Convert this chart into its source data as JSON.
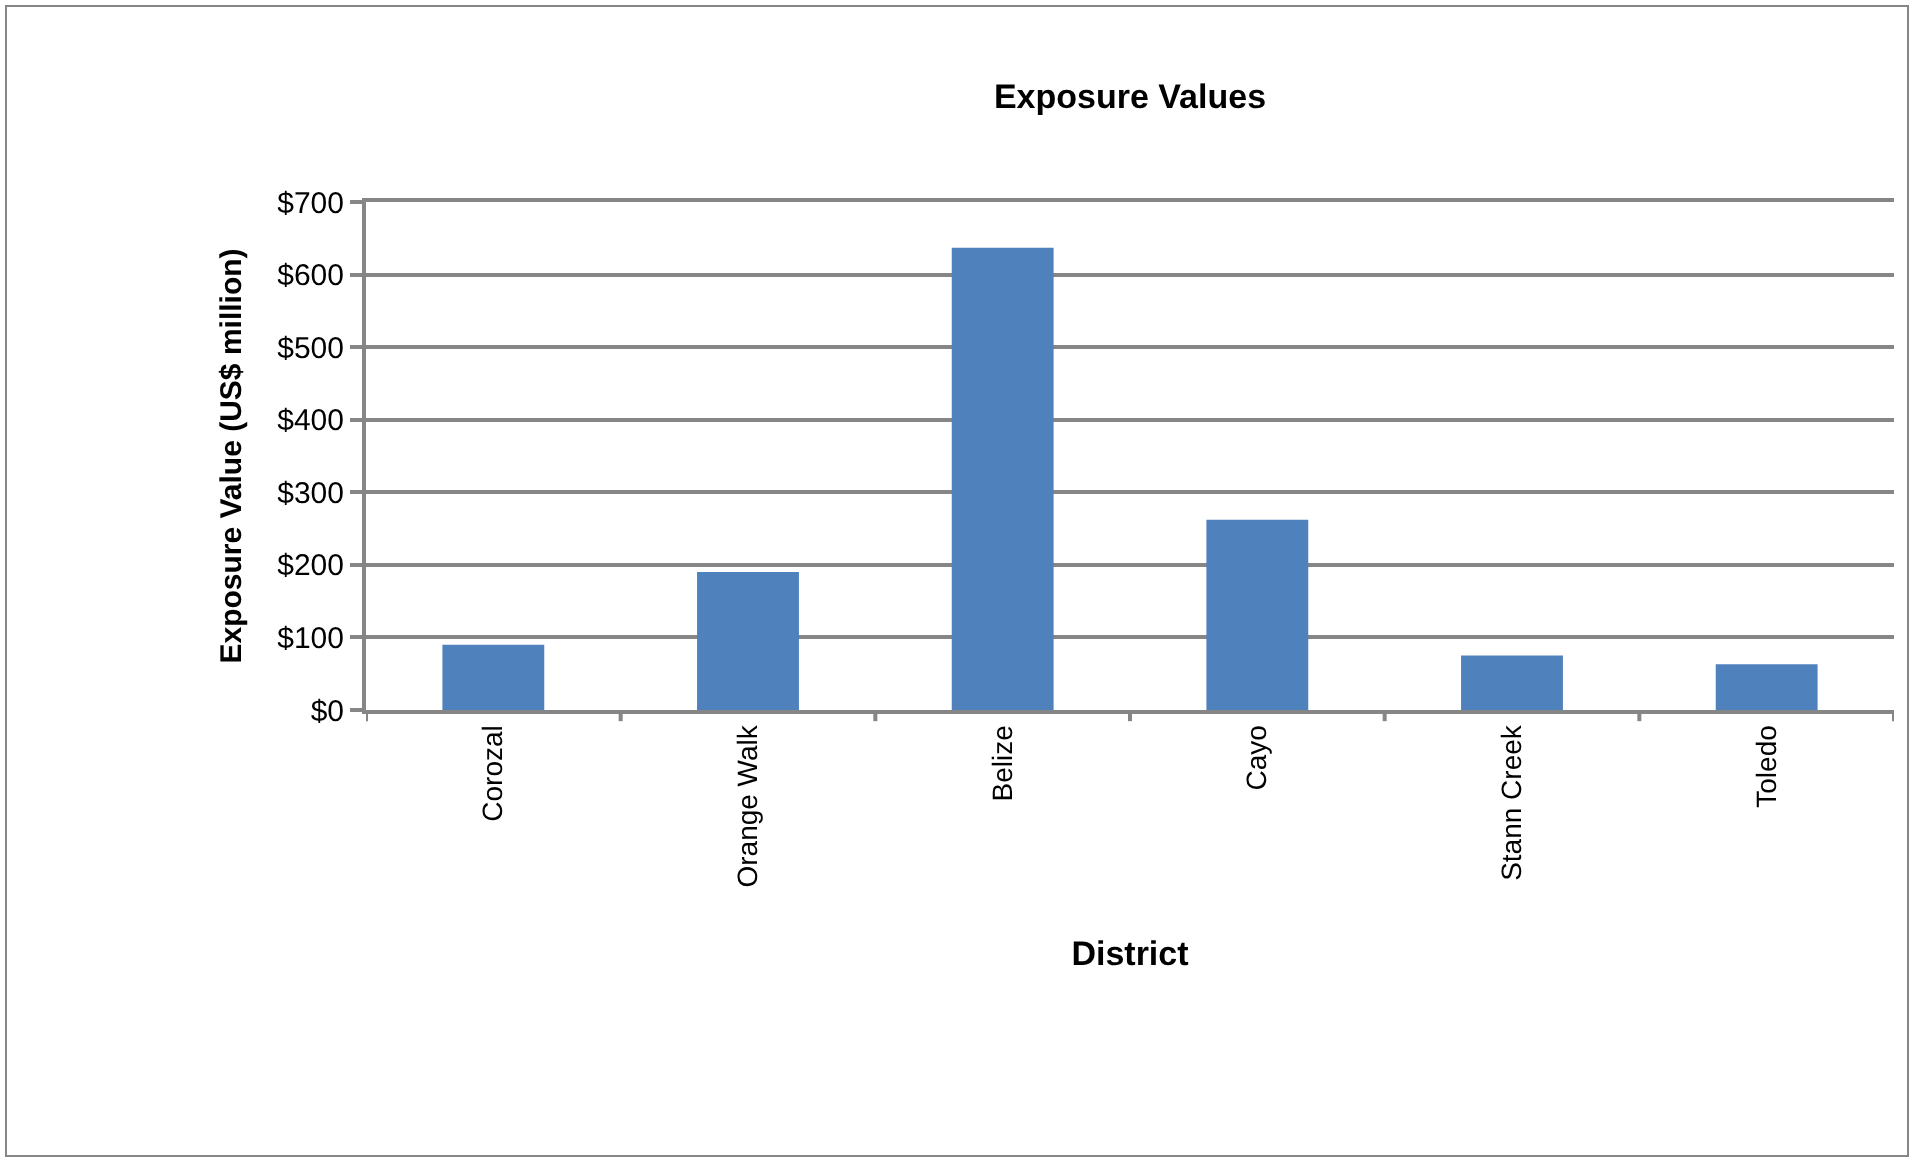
{
  "chart_data": {
    "type": "bar",
    "title": "Exposure Values",
    "xlabel": "District",
    "ylabel": "Exposure Value (US$ million)",
    "categories": [
      "Corozal",
      "Orange Walk",
      "Belize",
      "Cayo",
      "Stann Creek",
      "Toledo"
    ],
    "values": [
      90,
      190,
      637,
      262,
      75,
      63
    ],
    "color": "#4f81bd",
    "ylim": [
      0,
      700
    ],
    "yticks": [
      {
        "value": 0,
        "label": "$0"
      },
      {
        "value": 100,
        "label": "$100"
      },
      {
        "value": 200,
        "label": "$200"
      },
      {
        "value": 300,
        "label": "$300"
      },
      {
        "value": 400,
        "label": "$400"
      },
      {
        "value": 500,
        "label": "$500"
      },
      {
        "value": 600,
        "label": "$600"
      },
      {
        "value": 700,
        "label": "$700"
      }
    ],
    "grid": "y"
  }
}
